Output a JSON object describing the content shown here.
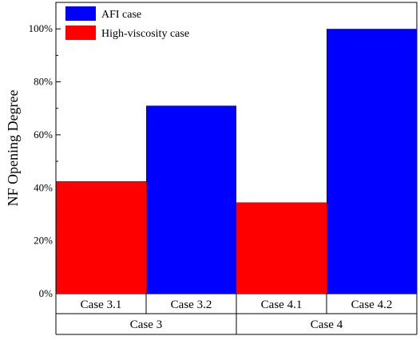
{
  "chart_data": {
    "type": "bar",
    "ylabel": "NF Opening Degree",
    "ylim": [
      0,
      1.1
    ],
    "yticks": [
      0,
      0.2,
      0.4,
      0.6,
      0.8,
      1.0
    ],
    "ytick_labels": [
      "0%",
      "20%",
      "40%",
      "60%",
      "80%",
      "100%"
    ],
    "categories": [
      "Case 3.1",
      "Case 3.2",
      "Case 4.1",
      "Case 4.2"
    ],
    "groups": [
      {
        "label": "Case 3",
        "categories": [
          "Case 3.1",
          "Case 3.2"
        ]
      },
      {
        "label": "Case 4",
        "categories": [
          "Case 4.1",
          "Case 4.2"
        ]
      }
    ],
    "values": [
      0.425,
      0.71,
      0.345,
      1.0
    ],
    "bar_series": [
      "High-viscosity case",
      "AFI case",
      "High-viscosity case",
      "AFI case"
    ],
    "series": [
      {
        "name": "AFI case",
        "color": "#0000ff"
      },
      {
        "name": "High-viscosity case",
        "color": "#ff0000"
      }
    ],
    "legend_position": "top-left",
    "grid": false
  }
}
